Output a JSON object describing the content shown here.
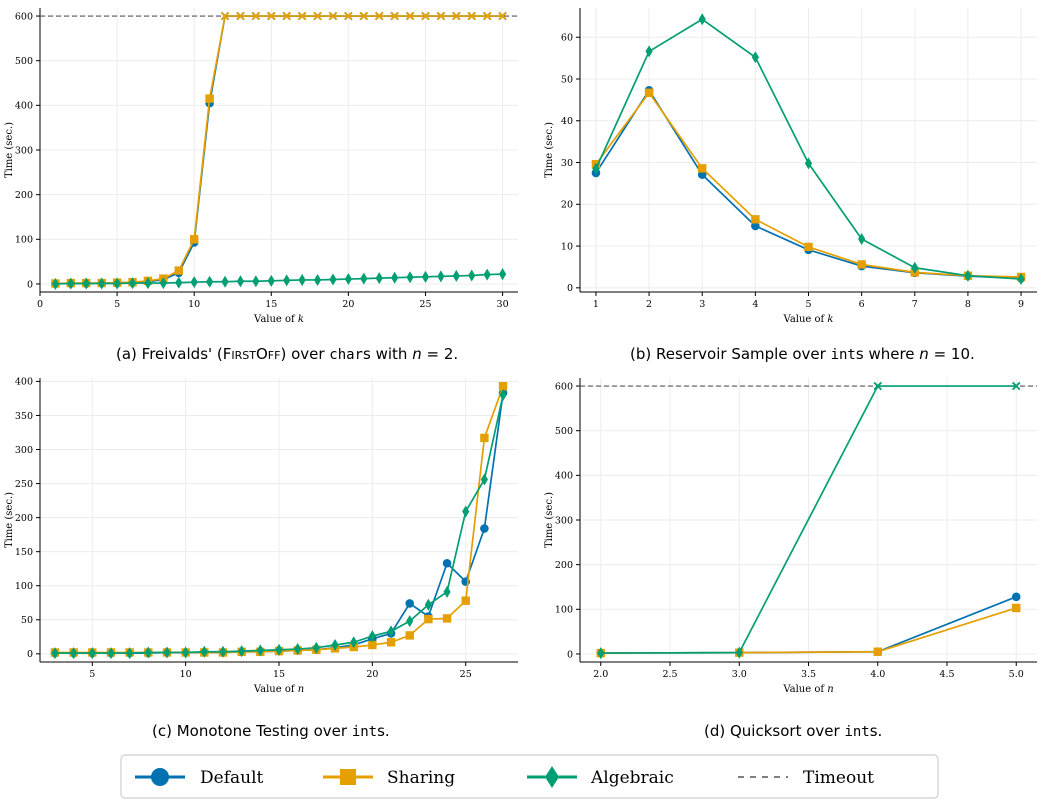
{
  "colors": {
    "default": "#0072B2",
    "sharing": "#E69F00",
    "algebraic": "#009E73",
    "timeout": "#555555",
    "grid": "#ececec"
  },
  "legend": {
    "default": "Default",
    "sharing": "Sharing",
    "algebraic": "Algebraic",
    "timeout": "Timeout"
  },
  "captions": {
    "a": {
      "pre": "(a) Freivalds' (",
      "sc": "FirstOff",
      "mid": ") over ",
      "tt": "char",
      "post": "s with ",
      "math": "n",
      "eq": " = 2."
    },
    "b": {
      "pre": "(b) Reservoir Sample over ",
      "tt": "int",
      "post": "s where ",
      "math": "n",
      "eq": " = 10."
    },
    "c": {
      "pre": "(c) Monotone Testing over ",
      "tt": "int",
      "post": "s."
    },
    "d": {
      "pre": "(d) Quicksort over ",
      "tt": "int",
      "post": "s."
    }
  },
  "chart_data": [
    {
      "id": "a",
      "type": "line",
      "xlabel": "Value of k",
      "ylabel": "Time (sec.)",
      "xlim": [
        0,
        31
      ],
      "ylim": [
        -18,
        618
      ],
      "xticks": [
        0,
        5,
        10,
        15,
        20,
        25,
        30
      ],
      "yticks": [
        0,
        100,
        200,
        300,
        400,
        500,
        600
      ],
      "timeout": 600,
      "grid": true,
      "series": [
        {
          "name": "Default",
          "key": "default",
          "marker": "circle",
          "x": [
            1,
            2,
            3,
            4,
            5,
            6,
            7,
            8,
            9,
            10,
            11,
            12,
            13,
            14,
            15,
            16,
            17,
            18,
            19,
            20,
            21,
            22,
            23,
            24,
            25,
            26,
            27,
            28,
            29,
            30
          ],
          "y": [
            1,
            1,
            1,
            2,
            2,
            3,
            5,
            10,
            25,
            93,
            405,
            600,
            600,
            600,
            600,
            600,
            600,
            600,
            600,
            600,
            600,
            600,
            600,
            600,
            600,
            600,
            600,
            600,
            600,
            600
          ]
        },
        {
          "name": "Sharing",
          "key": "sharing",
          "marker": "square",
          "x": [
            1,
            2,
            3,
            4,
            5,
            6,
            7,
            8,
            9,
            10,
            11,
            12,
            13,
            14,
            15,
            16,
            17,
            18,
            19,
            20,
            21,
            22,
            23,
            24,
            25,
            26,
            27,
            28,
            29,
            30
          ],
          "y": [
            1,
            2,
            2,
            2,
            3,
            4,
            7,
            12,
            30,
            100,
            415,
            600,
            600,
            600,
            600,
            600,
            600,
            600,
            600,
            600,
            600,
            600,
            600,
            600,
            600,
            600,
            600,
            600,
            600,
            600
          ]
        },
        {
          "name": "Algebraic",
          "key": "algebraic",
          "marker": "diamond",
          "x": [
            1,
            2,
            3,
            4,
            5,
            6,
            7,
            8,
            9,
            10,
            11,
            12,
            13,
            14,
            15,
            16,
            17,
            18,
            19,
            20,
            21,
            22,
            23,
            24,
            25,
            26,
            27,
            28,
            29,
            30
          ],
          "y": [
            0,
            1,
            1,
            1,
            1,
            2,
            2,
            2,
            3,
            4,
            5,
            5,
            6,
            6,
            7,
            8,
            9,
            9,
            10,
            11,
            12,
            13,
            14,
            15,
            16,
            17,
            18,
            19,
            21,
            22
          ]
        }
      ]
    },
    {
      "id": "b",
      "type": "line",
      "xlabel": "Value of k",
      "ylabel": "Time (sec.)",
      "xlim": [
        0.7,
        9.3
      ],
      "ylim": [
        -1,
        67
      ],
      "xticks": [
        1,
        2,
        3,
        4,
        5,
        6,
        7,
        8,
        9
      ],
      "yticks": [
        0,
        10,
        20,
        30,
        40,
        50,
        60
      ],
      "grid": true,
      "series": [
        {
          "name": "Default",
          "key": "default",
          "marker": "circle",
          "x": [
            1,
            2,
            3,
            4,
            5,
            6,
            7,
            8,
            9
          ],
          "y": [
            27.5,
            47.3,
            27.1,
            14.8,
            9.1,
            5.2,
            3.6,
            2.8,
            2.3
          ]
        },
        {
          "name": "Sharing",
          "key": "sharing",
          "marker": "square",
          "x": [
            1,
            2,
            3,
            4,
            5,
            6,
            7,
            8,
            9
          ],
          "y": [
            29.6,
            46.7,
            28.6,
            16.4,
            9.8,
            5.6,
            3.7,
            2.9,
            2.6
          ]
        },
        {
          "name": "Algebraic",
          "key": "algebraic",
          "marker": "diamond",
          "x": [
            1,
            2,
            3,
            4,
            5,
            6,
            7,
            8,
            9
          ],
          "y": [
            28.5,
            56.6,
            64.3,
            55.2,
            29.8,
            11.7,
            4.8,
            2.9,
            2.1
          ]
        }
      ]
    },
    {
      "id": "c",
      "type": "line",
      "xlabel": "Value of n",
      "ylabel": "Time (sec.)",
      "xlim": [
        2.2,
        27.8
      ],
      "ylim": [
        -12,
        405
      ],
      "xticks": [
        5,
        10,
        15,
        20,
        25
      ],
      "yticks": [
        0,
        50,
        100,
        150,
        200,
        250,
        300,
        350,
        400
      ],
      "grid": true,
      "series": [
        {
          "name": "Default",
          "key": "default",
          "marker": "circle",
          "x": [
            3,
            4,
            5,
            6,
            7,
            8,
            9,
            10,
            11,
            12,
            13,
            14,
            15,
            16,
            17,
            18,
            19,
            20,
            21,
            22,
            23,
            24,
            25,
            26,
            27
          ],
          "y": [
            1,
            1,
            1,
            1,
            1,
            1,
            2,
            2,
            2,
            2,
            3,
            3,
            4,
            5,
            6,
            9,
            13,
            22,
            30,
            74,
            55,
            133,
            106,
            184,
            383
          ]
        },
        {
          "name": "Sharing",
          "key": "sharing",
          "marker": "square",
          "x": [
            3,
            4,
            5,
            6,
            7,
            8,
            9,
            10,
            11,
            12,
            13,
            14,
            15,
            16,
            17,
            18,
            19,
            20,
            21,
            22,
            23,
            24,
            25,
            26,
            27
          ],
          "y": [
            2,
            2,
            2,
            2,
            2,
            2,
            2,
            2,
            2,
            2,
            3,
            3,
            4,
            5,
            6,
            8,
            10,
            13,
            17,
            27,
            51,
            52,
            78,
            317,
            393
          ]
        },
        {
          "name": "Algebraic",
          "key": "algebraic",
          "marker": "diamond",
          "x": [
            3,
            4,
            5,
            6,
            7,
            8,
            9,
            10,
            11,
            12,
            13,
            14,
            15,
            16,
            17,
            18,
            19,
            20,
            21,
            22,
            23,
            24,
            25,
            26,
            27
          ],
          "y": [
            1,
            1,
            1,
            1,
            1,
            2,
            2,
            2,
            3,
            3,
            4,
            5,
            6,
            7,
            9,
            13,
            17,
            26,
            33,
            48,
            72,
            91,
            209,
            256,
            380
          ]
        }
      ]
    },
    {
      "id": "d",
      "type": "line",
      "xlabel": "Value of n",
      "ylabel": "Time (sec.)",
      "xlim": [
        1.85,
        5.15
      ],
      "ylim": [
        -18,
        618
      ],
      "xticks": [
        2.0,
        2.5,
        3.0,
        3.5,
        4.0,
        4.5,
        5.0
      ],
      "yticks": [
        0,
        100,
        200,
        300,
        400,
        500,
        600
      ],
      "timeout": 600,
      "grid": true,
      "series": [
        {
          "name": "Default",
          "key": "default",
          "marker": "circle",
          "x": [
            2,
            3,
            4,
            5
          ],
          "y": [
            2,
            3,
            5,
            128
          ]
        },
        {
          "name": "Sharing",
          "key": "sharing",
          "marker": "square",
          "x": [
            2,
            3,
            4,
            5
          ],
          "y": [
            2,
            3,
            5,
            103
          ]
        },
        {
          "name": "Algebraic",
          "key": "algebraic",
          "marker": "diamond",
          "x": [
            2,
            3,
            4,
            5
          ],
          "y": [
            2,
            3,
            600,
            600
          ]
        }
      ]
    }
  ]
}
